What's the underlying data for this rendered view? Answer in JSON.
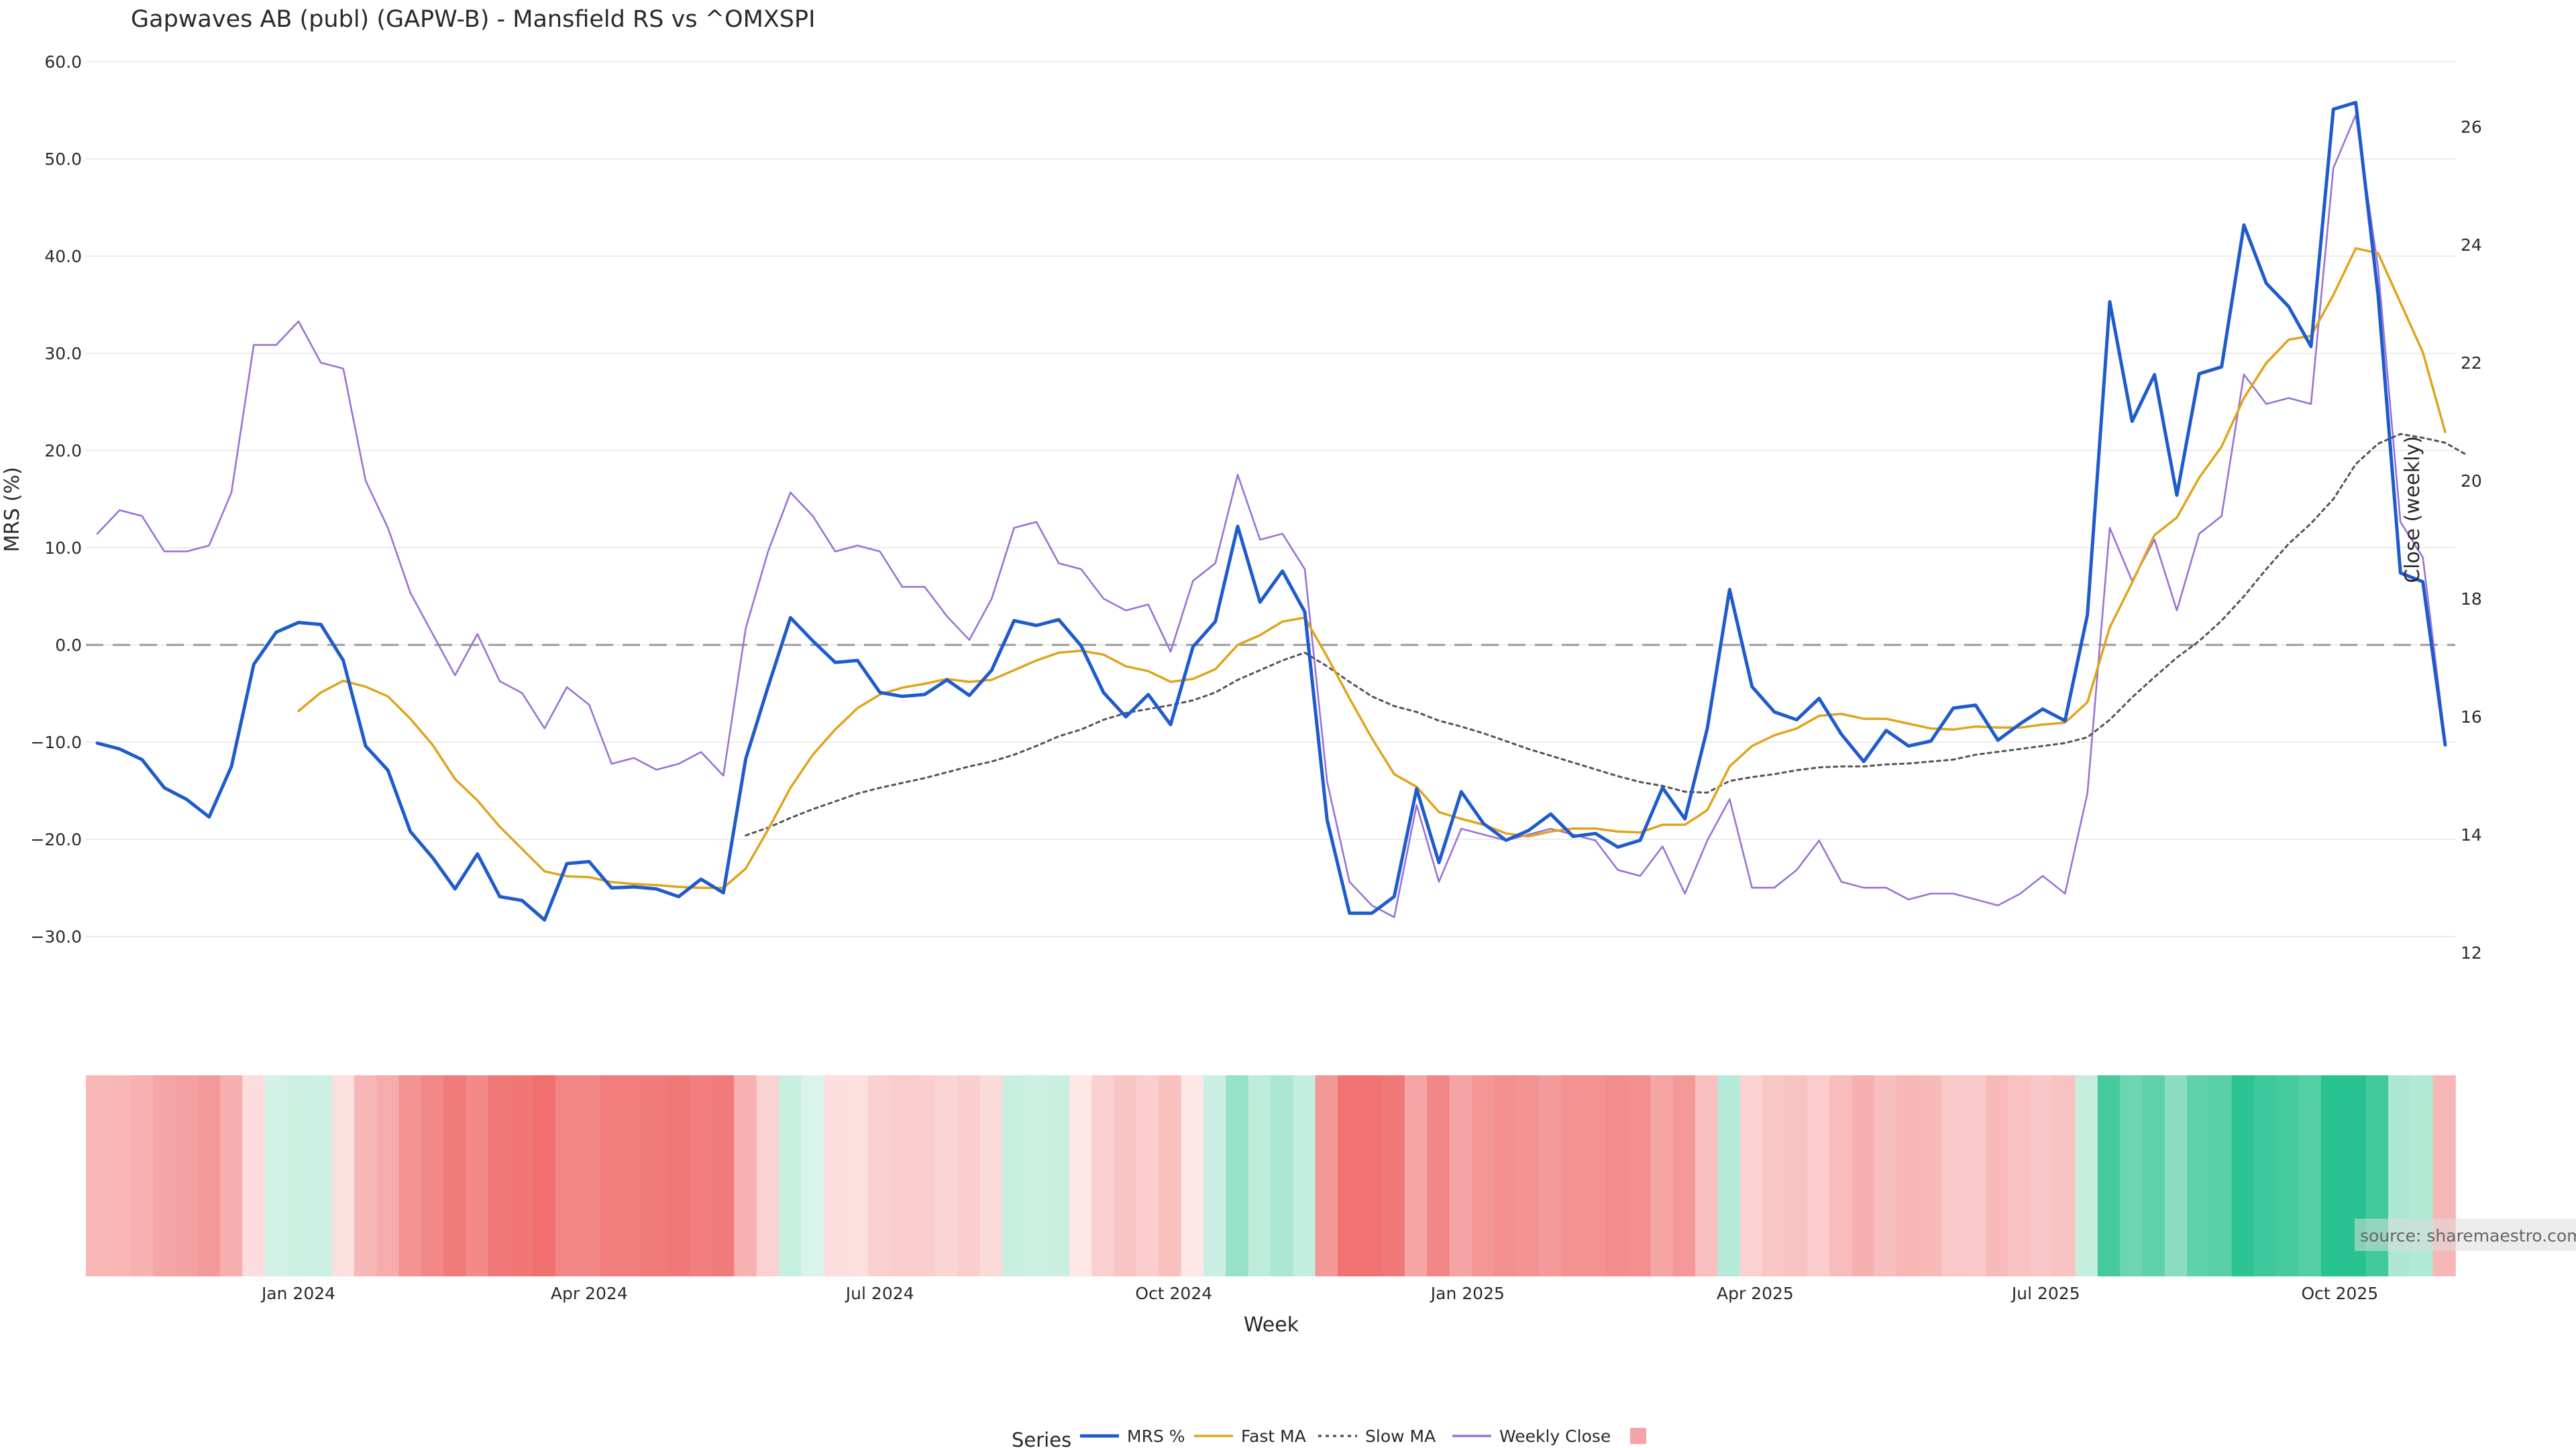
{
  "chart_data": {
    "type": "line",
    "title": "Gapwaves AB (publ) (GAPW-B) - Mansfield RS vs ^OMXSPI",
    "xlabel": "Week",
    "ylabel_left": "MRS (%)",
    "ylabel_right": "Close (weekly)",
    "ylim_left": [
      -32,
      61
    ],
    "ylim_right": [
      11.1,
      27.0
    ],
    "y_ticks_left": [
      "60.0",
      "50.0",
      "40.0",
      "30.0",
      "20.0",
      "10.0",
      "0.0",
      "−10.0",
      "−20.0",
      "−30.0"
    ],
    "y_ticks_right": [
      "26",
      "24",
      "22",
      "20",
      "18",
      "16",
      "14",
      "12"
    ],
    "x_tick_labels": [
      "Jan 2024",
      "Apr 2024",
      "Jul 2024",
      "Oct 2024",
      "Jan 2025",
      "Apr 2025",
      "Jul 2025",
      "Oct 2025"
    ],
    "x_start_date": "2023-10-30",
    "grid": true,
    "reference_line": 0,
    "source": "source: sharemaestro.com",
    "legend": {
      "title": "Series",
      "placement": "bottom-center",
      "items": [
        {
          "label": "MRS %",
          "color": "#1f5bcc",
          "style": "solid"
        },
        {
          "label": "Fast MA",
          "color": "#e0a41c",
          "style": "solid"
        },
        {
          "label": "Slow MA",
          "color": "#555555",
          "style": "dotted"
        },
        {
          "label": "Weekly Close",
          "color": "#9b72d4",
          "style": "solid"
        },
        {
          "label": "",
          "color": "#f4a3a7",
          "style": "swatch"
        }
      ]
    },
    "series": [
      {
        "name": "MRS %",
        "axis": "left",
        "color": "#1f5bcc",
        "values": [
          -10.1,
          -10.7,
          -11.8,
          -14.7,
          -15.9,
          -17.7,
          -12.5,
          -2.0,
          1.3,
          2.3,
          2.1,
          -1.6,
          -10.4,
          -12.9,
          -19.2,
          -21.9,
          -25.1,
          -21.5,
          -25.9,
          -26.3,
          -28.3,
          -22.5,
          -22.3,
          -25.0,
          -24.9,
          -25.1,
          -25.9,
          -24.1,
          -25.5,
          -11.7,
          -4.3,
          2.8,
          0.4,
          -1.8,
          -1.6,
          -4.9,
          -5.3,
          -5.1,
          -3.6,
          -5.2,
          -2.6,
          2.5,
          2.0,
          2.6,
          -0.1,
          -4.9,
          -7.4,
          -5.1,
          -8.2,
          -0.2,
          2.4,
          12.2,
          4.4,
          7.6,
          3.4,
          -18.0,
          -27.6,
          -27.6,
          -25.9,
          -14.8,
          -22.4,
          -15.1,
          -18.4,
          -20.1,
          -19.1,
          -17.4,
          -19.7,
          -19.4,
          -20.8,
          -20.1,
          -14.7,
          -17.9,
          -8.6,
          5.7,
          -4.3,
          -6.9,
          -7.7,
          -5.5,
          -9.2,
          -12.0,
          -8.8,
          -10.4,
          -9.9,
          -6.5,
          -6.2,
          -9.8,
          -8.1,
          -6.6,
          -7.8,
          3.1,
          35.3,
          23.0,
          27.8,
          15.4,
          27.9,
          28.6,
          43.2,
          37.2,
          34.8,
          30.7,
          55.1,
          55.8,
          36.0,
          7.4,
          6.5,
          -10.3
        ]
      },
      {
        "name": "Fast MA",
        "axis": "left",
        "color": "#e0a41c",
        "values": [
          null,
          null,
          null,
          null,
          null,
          null,
          null,
          null,
          null,
          -6.8,
          -4.9,
          -3.7,
          -4.3,
          -5.3,
          -7.6,
          -10.3,
          -13.8,
          -16.0,
          -18.7,
          -21.0,
          -23.3,
          -23.8,
          -23.9,
          -24.4,
          -24.6,
          -24.7,
          -24.9,
          -25.0,
          -25.0,
          -23.0,
          -19.0,
          -14.7,
          -11.3,
          -8.7,
          -6.5,
          -5.1,
          -4.4,
          -4.0,
          -3.5,
          -3.8,
          -3.6,
          -2.6,
          -1.6,
          -0.8,
          -0.6,
          -1.0,
          -2.2,
          -2.7,
          -3.8,
          -3.5,
          -2.5,
          0.0,
          1.0,
          2.4,
          2.8,
          -1.2,
          -5.5,
          -9.6,
          -13.3,
          -14.6,
          -17.2,
          -17.9,
          -18.5,
          -19.4,
          -19.7,
          -19.2,
          -18.9,
          -18.9,
          -19.2,
          -19.3,
          -18.5,
          -18.5,
          -17.0,
          -12.5,
          -10.4,
          -9.3,
          -8.6,
          -7.3,
          -7.1,
          -7.6,
          -7.6,
          -8.1,
          -8.6,
          -8.7,
          -8.4,
          -8.5,
          -8.5,
          -8.2,
          -8.0,
          -5.9,
          1.8,
          6.4,
          11.3,
          13.1,
          17.2,
          20.4,
          25.4,
          29.0,
          31.4,
          31.8,
          36.0,
          40.8,
          40.3,
          35.2,
          30.1,
          21.9
        ]
      },
      {
        "name": "Slow MA",
        "axis": "left",
        "color": "#555555",
        "values": [
          null,
          null,
          null,
          null,
          null,
          null,
          null,
          null,
          null,
          null,
          null,
          null,
          null,
          null,
          null,
          null,
          null,
          null,
          null,
          null,
          null,
          null,
          null,
          null,
          null,
          null,
          null,
          null,
          null,
          -19.6,
          -18.8,
          -17.8,
          -16.9,
          -16.1,
          -15.3,
          -14.7,
          -14.2,
          -13.7,
          -13.1,
          -12.5,
          -12.0,
          -11.3,
          -10.4,
          -9.4,
          -8.7,
          -7.7,
          -7.0,
          -6.6,
          -6.2,
          -5.7,
          -4.9,
          -3.6,
          -2.6,
          -1.6,
          -0.8,
          -2.2,
          -3.8,
          -5.3,
          -6.3,
          -6.9,
          -7.8,
          -8.4,
          -9.1,
          -9.9,
          -10.7,
          -11.4,
          -12.1,
          -12.8,
          -13.5,
          -14.1,
          -14.5,
          -15.1,
          -15.2,
          -14.0,
          -13.6,
          -13.3,
          -12.9,
          -12.6,
          -12.5,
          -12.5,
          -12.3,
          -12.2,
          -12.0,
          -11.8,
          -11.3,
          -11.0,
          -10.7,
          -10.4,
          -10.1,
          -9.5,
          -7.7,
          -5.4,
          -3.3,
          -1.3,
          0.4,
          2.5,
          5.0,
          7.8,
          10.4,
          12.5,
          15.0,
          18.6,
          20.7,
          21.7,
          21.3,
          20.8,
          19.5
        ]
      },
      {
        "name": "Weekly Close",
        "axis": "right",
        "color": "#9b72d4",
        "values": [
          19.1,
          19.5,
          19.4,
          18.8,
          18.8,
          18.9,
          19.8,
          22.3,
          22.3,
          22.7,
          22.0,
          21.9,
          20.0,
          19.2,
          18.1,
          17.4,
          16.7,
          17.4,
          16.6,
          16.4,
          15.8,
          16.5,
          16.2,
          15.2,
          15.3,
          15.1,
          15.2,
          15.4,
          15.0,
          17.5,
          18.8,
          19.8,
          19.4,
          18.8,
          18.9,
          18.8,
          18.2,
          18.2,
          17.7,
          17.3,
          18.0,
          19.2,
          19.3,
          18.6,
          18.5,
          18.0,
          17.8,
          17.9,
          17.1,
          18.3,
          18.6,
          20.1,
          19.0,
          19.1,
          18.5,
          14.9,
          13.2,
          12.8,
          12.6,
          14.5,
          13.2,
          14.1,
          14.0,
          13.9,
          14.0,
          14.1,
          14.0,
          13.9,
          13.4,
          13.3,
          13.8,
          13.0,
          13.9,
          14.6,
          13.1,
          13.1,
          13.4,
          13.9,
          13.2,
          13.1,
          13.1,
          12.9,
          13.0,
          13.0,
          12.9,
          12.8,
          13.0,
          13.3,
          13.0,
          14.7,
          19.2,
          18.3,
          19.0,
          17.8,
          19.1,
          19.4,
          21.8,
          21.3,
          21.4,
          21.3,
          25.3,
          26.2,
          23.6,
          19.3,
          18.7,
          15.6
        ]
      }
    ],
    "heat_band": {
      "description_values": "MRS % per week mapped to diverging color (red negative, green positive)",
      "negative_color": "#f07070",
      "positive_color": "#27c28f",
      "neutral_color": "#fbe4e4"
    }
  }
}
